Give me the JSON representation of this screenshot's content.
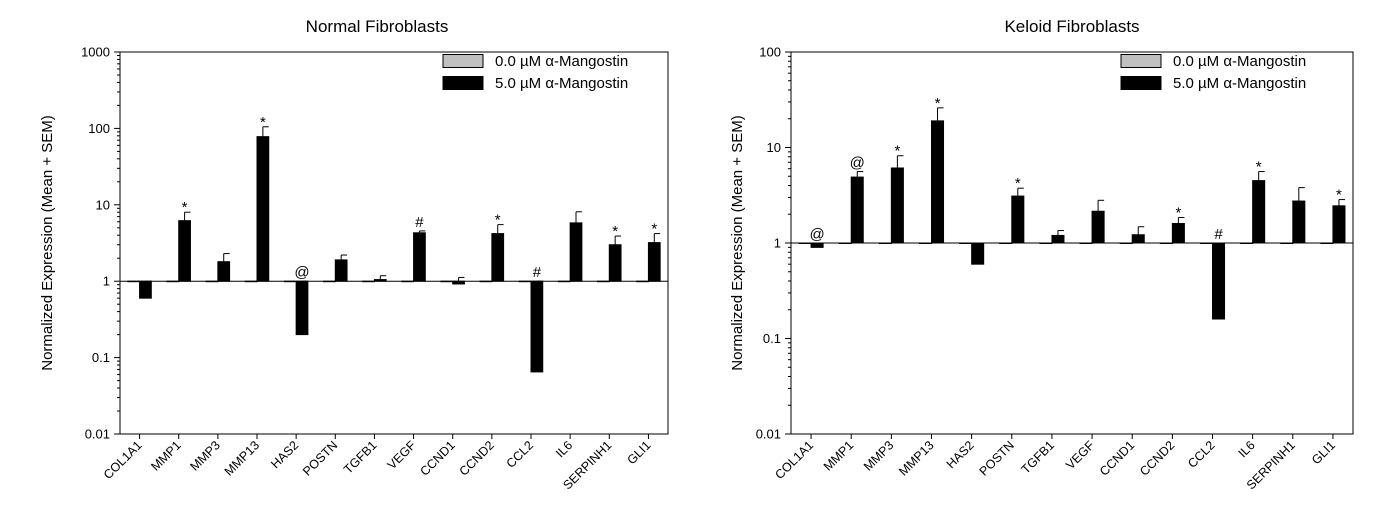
{
  "chart_data": [
    {
      "type": "bar",
      "scale": "log",
      "title": "Normal Fibroblasts",
      "ylabel": "Normalized Expression (Mean + SEM)",
      "xlabel": "",
      "ylim": [
        0.01,
        1000
      ],
      "yticks": [
        "0.01",
        "0.1",
        "1",
        "10",
        "100",
        "1000"
      ],
      "reference_line": 1,
      "categories": [
        "COL1A1",
        "MMP1",
        "MMP3",
        "MMP13",
        "HAS2",
        "POSTN",
        "TGFB1",
        "VEGF",
        "CCND1",
        "CCND2",
        "CCL2",
        "IL6",
        "SERPINH1",
        "GLI1"
      ],
      "legend_position": "top-right",
      "series": [
        {
          "name": "0.0 µM α-Mangostin",
          "color": "#c0c0c0",
          "values": [
            1,
            1,
            1,
            1,
            1,
            1,
            1,
            1,
            1,
            1,
            1,
            1,
            1,
            1
          ]
        },
        {
          "name": "5.0 µM α-Mangostin",
          "color": "#000000",
          "values": [
            0.6,
            6.2,
            1.8,
            78,
            0.2,
            1.9,
            1.05,
            4.3,
            0.92,
            4.2,
            0.065,
            5.8,
            3.0,
            3.2
          ],
          "errors": [
            0.8,
            8.0,
            2.3,
            105,
            0.36,
            2.2,
            1.18,
            4.55,
            1.12,
            5.5,
            0.115,
            8.1,
            3.9,
            4.2
          ],
          "annotations": [
            "",
            "*",
            "",
            "*",
            "@",
            "",
            "",
            "#",
            "",
            "*",
            "#",
            "",
            "*",
            "*"
          ]
        }
      ]
    },
    {
      "type": "bar",
      "scale": "log",
      "title": "Keloid Fibroblasts",
      "ylabel": "Normalized Expression (Mean + SEM)",
      "xlabel": "",
      "ylim": [
        0.01,
        100
      ],
      "yticks": [
        "0.01",
        "0.1",
        "1",
        "10",
        "100"
      ],
      "reference_line": 1,
      "categories": [
        "COL1A1",
        "MMP1",
        "MMP3",
        "MMP13",
        "HAS2",
        "POSTN",
        "TGFB1",
        "VEGF",
        "CCND1",
        "CCND2",
        "CCL2",
        "IL6",
        "SERPINH1",
        "GLI1"
      ],
      "legend_position": "top-right",
      "series": [
        {
          "name": "0.0 µM α-Mangostin",
          "color": "#c0c0c0",
          "values": [
            1,
            1,
            1,
            1,
            1,
            1,
            1,
            1,
            1,
            1,
            1,
            1,
            1,
            1
          ]
        },
        {
          "name": "5.0 µM α-Mangostin",
          "color": "#000000",
          "values": [
            0.9,
            4.9,
            6.1,
            19,
            0.6,
            3.1,
            1.2,
            2.15,
            1.22,
            1.6,
            0.16,
            4.5,
            2.75,
            2.45
          ],
          "errors": [
            0.9,
            5.6,
            8.2,
            26,
            0.97,
            3.75,
            1.35,
            2.8,
            1.48,
            1.85,
            0.175,
            5.6,
            3.8,
            2.85
          ],
          "annotations": [
            "@",
            "@",
            "*",
            "*",
            "",
            "*",
            "",
            "",
            "",
            "*",
            "#",
            "*",
            "",
            "*"
          ]
        }
      ]
    }
  ]
}
